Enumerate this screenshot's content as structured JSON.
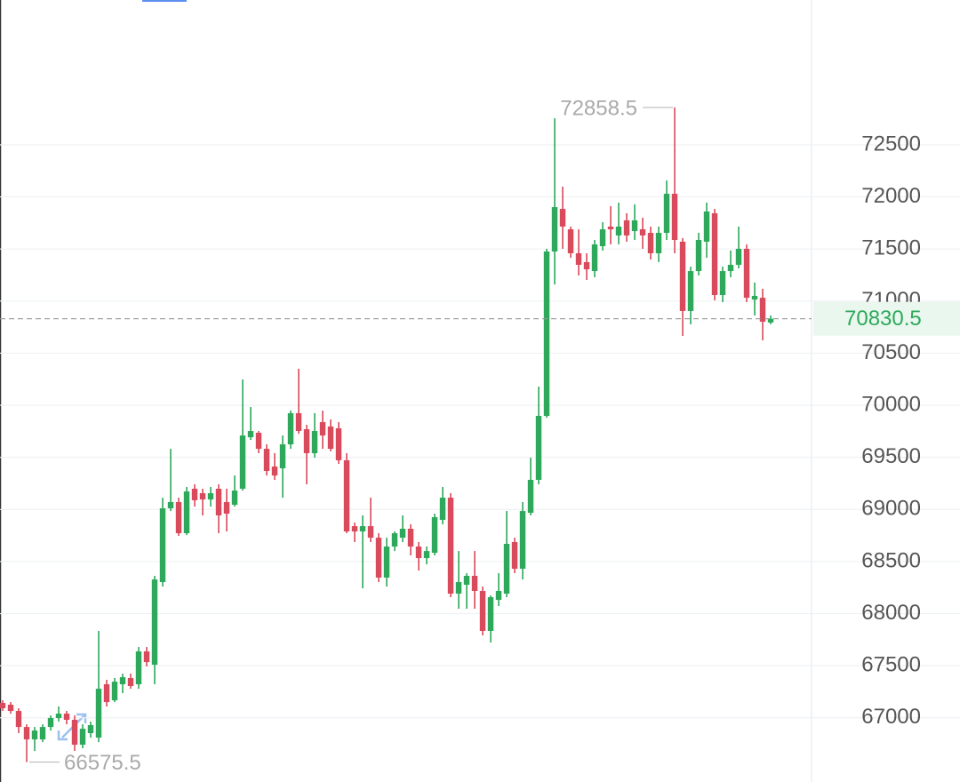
{
  "chart_data": {
    "type": "candlestick",
    "ylim": [
      66384,
      73890
    ],
    "yticks": [
      67000,
      67500,
      68000,
      68500,
      69000,
      69500,
      70000,
      70500,
      71000,
      71500,
      72000,
      72500
    ],
    "grid": true,
    "up_color": "#2ea95b",
    "down_color": "#d94a5c",
    "max_label": 72858.5,
    "min_label": 66575.5,
    "last_price": 70830.5,
    "open": [
      67143,
      67126,
      67066,
      66912,
      66793,
      66793,
      66912,
      66998,
      67040,
      66981,
      66742,
      66853,
      66810,
      67322,
      67168,
      67322,
      67382,
      67322,
      67638,
      67510,
      68303,
      69011,
      69071,
      68772,
      69199,
      69156,
      69096,
      69199,
      69071,
      69045,
      69199,
      69693,
      69736,
      69582,
      69412,
      69395,
      69625,
      69924,
      69770,
      69540,
      69838,
      69796,
      69779,
      69472,
      68840,
      68789,
      68840,
      68729,
      68346,
      68644,
      68729,
      68815,
      68644,
      68533,
      68584,
      68900,
      69113,
      68192,
      68277,
      68363,
      68218,
      67834,
      68132,
      68192,
      68687,
      68431,
      68968,
      69284,
      69898,
      71476,
      71885,
      71689,
      71459,
      71374,
      71288,
      71527,
      71715,
      71630,
      71775,
      71672,
      71689,
      71655,
      71459,
      71655,
      72030,
      71570,
      70905,
      71288,
      71570,
      71843,
      71058,
      71288,
      71348,
      71502,
      71015,
      71032,
      70794
    ],
    "high": [
      67168,
      67151,
      67092,
      66938,
      66912,
      66938,
      67023,
      67109,
      67066,
      67023,
      66938,
      66964,
      67834,
      67365,
      67382,
      67424,
      67424,
      67680,
      67680,
      68363,
      69113,
      69582,
      69113,
      69216,
      69241,
      69199,
      69216,
      69241,
      69199,
      69326,
      70248,
      69983,
      69753,
      69625,
      69540,
      69710,
      69949,
      70350,
      69813,
      69924,
      69949,
      69864,
      69838,
      69540,
      68874,
      68943,
      69113,
      68772,
      68729,
      68789,
      68943,
      68857,
      68687,
      68644,
      68960,
      69216,
      69156,
      68601,
      68388,
      68601,
      68260,
      68175,
      68388,
      68985,
      68729,
      69071,
      69497,
      70179,
      71502,
      72755,
      72099,
      71715,
      71689,
      71459,
      71587,
      71757,
      71911,
      71945,
      71843,
      71928,
      71800,
      71715,
      71715,
      72158,
      72858.5,
      71604,
      71331,
      71655,
      71945,
      71885,
      71331,
      71485,
      71715,
      71544,
      71178,
      71118,
      70862
    ],
    "low": [
      67066,
      67040,
      66853,
      66575.5,
      66682,
      66767,
      66878,
      66964,
      66938,
      66682,
      66708,
      66810,
      66767,
      67109,
      67151,
      67237,
      67279,
      67279,
      67493,
      67322,
      68260,
      68985,
      68746,
      68755,
      69028,
      68943,
      69028,
      68772,
      68789,
      69028,
      69181,
      69668,
      69540,
      69326,
      69284,
      69113,
      69582,
      69727,
      69241,
      69497,
      69582,
      69557,
      69437,
      68772,
      68687,
      68243,
      68687,
      68303,
      68260,
      68601,
      68687,
      68559,
      68414,
      68473,
      68559,
      68857,
      68158,
      68047,
      68047,
      68047,
      67791,
      67723,
      68073,
      68158,
      68388,
      68328,
      68943,
      69241,
      69881,
      71160,
      71502,
      71416,
      71246,
      71203,
      71229,
      71485,
      71544,
      71544,
      71570,
      71587,
      71502,
      71399,
      71374,
      71587,
      71459,
      70666,
      70777,
      71246,
      71416,
      71007,
      70990,
      71229,
      71314,
      70990,
      70862,
      70623,
      70777
    ],
    "close": [
      67092,
      67066,
      66912,
      66793,
      66878,
      66912,
      66998,
      67040,
      66981,
      66742,
      66895,
      66930,
      67279,
      67151,
      67347,
      67390,
      67305,
      67638,
      67535,
      68328,
      69011,
      69071,
      68772,
      69173,
      69088,
      69096,
      69156,
      68943,
      68960,
      69181,
      69710,
      69753,
      69582,
      69369,
      69326,
      69625,
      69924,
      69753,
      69540,
      69753,
      69710,
      69582,
      69472,
      68789,
      68789,
      68840,
      68729,
      68346,
      68644,
      68772,
      68815,
      68644,
      68533,
      68601,
      68926,
      69113,
      68192,
      68303,
      68363,
      68218,
      67834,
      68158,
      68218,
      68670,
      68431,
      68985,
      69284,
      69898,
      71476,
      71902,
      71715,
      71459,
      71348,
      71305,
      71544,
      71689,
      71689,
      71715,
      71630,
      71775,
      71630,
      71459,
      71655,
      72030,
      71587,
      70905,
      71288,
      71587,
      71860,
      71058,
      71288,
      71348,
      71502,
      71032,
      71050,
      70802,
      70830.5
    ]
  }
}
